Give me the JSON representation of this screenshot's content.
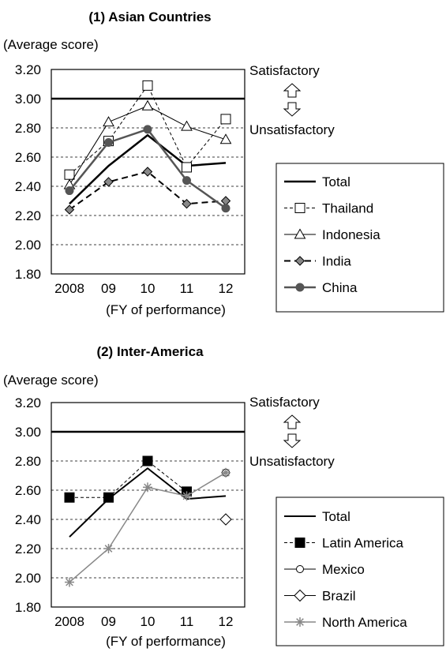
{
  "chart_data": [
    {
      "type": "line",
      "title": "(1) Asian Countries",
      "ylabel": "(Average score)",
      "xlabel": "(FY of performance)",
      "categories": [
        "2008",
        "09",
        "10",
        "11",
        "12"
      ],
      "y_ticks": [
        "3.20",
        "3.00",
        "2.80",
        "2.60",
        "2.40",
        "2.20",
        "2.00",
        "1.80"
      ],
      "ylim": [
        1.8,
        3.2
      ],
      "reference_line": 3.0,
      "annotations": {
        "satisfactory": "Satisfactory",
        "unsatisfactory": "Unsatisfactory"
      },
      "legend_position": "right",
      "series": [
        {
          "name": "Total",
          "values": [
            2.28,
            2.54,
            2.75,
            2.54,
            2.56
          ],
          "color": "#000000",
          "marker": "none",
          "dash": "solid",
          "width": 2.5
        },
        {
          "name": "Thailand",
          "values": [
            2.48,
            2.71,
            3.09,
            2.53,
            2.86
          ],
          "color": "#000000",
          "marker": "square-open",
          "dash": "dashed",
          "width": 1
        },
        {
          "name": "Indonesia",
          "values": [
            2.41,
            2.84,
            2.95,
            2.81,
            2.72
          ],
          "color": "#000000",
          "marker": "triangle-open",
          "dash": "solid",
          "width": 1
        },
        {
          "name": "India",
          "values": [
            2.24,
            2.43,
            2.5,
            2.28,
            2.3
          ],
          "color": "#000000",
          "marker": "diamond-filled",
          "dash": "dashed",
          "width": 2
        },
        {
          "name": "China",
          "values": [
            2.37,
            2.7,
            2.79,
            2.44,
            2.25
          ],
          "color": "#555555",
          "marker": "circle-filled",
          "dash": "solid",
          "width": 2.5
        }
      ]
    },
    {
      "type": "line",
      "title": "(2) Inter-America",
      "ylabel": "(Average score)",
      "xlabel": "(FY of performance)",
      "categories": [
        "2008",
        "09",
        "10",
        "11",
        "12"
      ],
      "y_ticks": [
        "3.20",
        "3.00",
        "2.80",
        "2.60",
        "2.40",
        "2.20",
        "2.00",
        "1.80"
      ],
      "ylim": [
        1.8,
        3.2
      ],
      "reference_line": 3.0,
      "annotations": {
        "satisfactory": "Satisfactory",
        "unsatisfactory": "Unsatisfactory"
      },
      "legend_position": "right",
      "series": [
        {
          "name": "Total",
          "values": [
            2.28,
            2.54,
            2.75,
            2.54,
            2.56
          ],
          "color": "#000000",
          "marker": "none",
          "dash": "solid",
          "width": 2
        },
        {
          "name": "Latin America",
          "values": [
            2.55,
            2.55,
            2.8,
            2.59,
            null
          ],
          "color": "#000000",
          "marker": "square-filled",
          "dash": "dashed",
          "width": 1
        },
        {
          "name": "Mexico",
          "values": [
            null,
            null,
            null,
            null,
            2.72
          ],
          "color": "#000000",
          "marker": "circle-open",
          "dash": "solid",
          "width": 1
        },
        {
          "name": "Brazil",
          "values": [
            null,
            null,
            null,
            null,
            2.4
          ],
          "color": "#000000",
          "marker": "diamond-open",
          "dash": "solid",
          "width": 1
        },
        {
          "name": "North America",
          "values": [
            1.97,
            2.2,
            2.62,
            2.56,
            2.72
          ],
          "color": "#888888",
          "marker": "star",
          "dash": "solid",
          "width": 1.5
        }
      ]
    }
  ]
}
